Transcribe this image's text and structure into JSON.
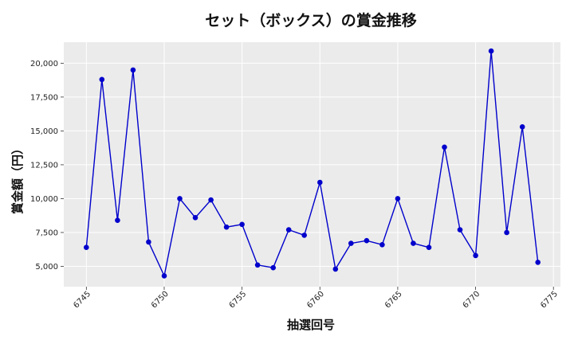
{
  "chart_data": {
    "type": "line",
    "title": "セット（ボックス）の賞金推移",
    "xlabel": "抽選回号",
    "ylabel": "賞金額（円）",
    "xlim": [
      6743.55,
      6775.45
    ],
    "ylim": [
      3500,
      21550
    ],
    "xticks": [
      6745,
      6750,
      6755,
      6760,
      6765,
      6770,
      6775
    ],
    "yticks": [
      5000,
      7500,
      10000,
      12500,
      15000,
      17500,
      20000
    ],
    "ytick_labels": [
      "5,000",
      "7,500",
      "10,000",
      "12,500",
      "15,000",
      "17,500",
      "20,000"
    ],
    "grid": true,
    "series": [
      {
        "color": "#0000cc",
        "x": [
          6745,
          6746,
          6747,
          6748,
          6749,
          6750,
          6751,
          6752,
          6753,
          6754,
          6755,
          6756,
          6757,
          6758,
          6759,
          6760,
          6761,
          6762,
          6763,
          6764,
          6765,
          6766,
          6767,
          6768,
          6769,
          6770,
          6771,
          6772,
          6773,
          6774
        ],
        "y": [
          6400,
          18800,
          8400,
          19500,
          6800,
          4300,
          10000,
          8600,
          9900,
          7900,
          8100,
          5100,
          4900,
          7700,
          7300,
          11200,
          4800,
          6700,
          6900,
          6600,
          10000,
          6700,
          6400,
          13800,
          7700,
          5800,
          20900,
          7500,
          15300,
          5300
        ]
      }
    ]
  },
  "colors": {
    "plot_background": "#ebebeb",
    "grid": "#ffffff",
    "line": "#0000cc"
  }
}
